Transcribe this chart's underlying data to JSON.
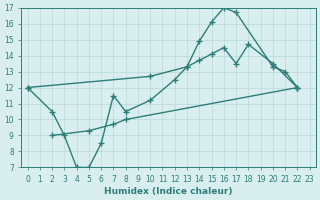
{
  "line1_x": [
    0,
    2,
    3,
    4,
    5,
    6,
    7,
    8,
    10,
    12,
    13,
    14,
    15,
    16,
    17,
    20,
    21,
    22
  ],
  "line1_y": [
    12,
    10.5,
    9,
    7,
    7,
    8.5,
    11.5,
    10.5,
    11.2,
    12.5,
    13.3,
    14.9,
    16.1,
    17,
    16.7,
    13.3,
    13.0,
    12.0
  ],
  "line2_x": [
    0,
    10,
    13,
    14,
    15,
    16,
    17,
    18,
    20,
    22
  ],
  "line2_y": [
    12,
    12.7,
    13.3,
    13.7,
    14.1,
    14.5,
    13.5,
    14.7,
    13.5,
    12.0
  ],
  "line3_x": [
    2,
    5,
    7,
    8,
    22
  ],
  "line3_y": [
    9.0,
    9.3,
    9.7,
    10.0,
    12.0
  ],
  "bg_color": "#d9efef",
  "line_color": "#2d7d78",
  "grid_color": "#b8d8d8",
  "xlabel": "Humidex (Indice chaleur)",
  "xlim": [
    -0.5,
    23.5
  ],
  "ylim": [
    7,
    17
  ],
  "xticks": [
    0,
    1,
    2,
    3,
    4,
    5,
    6,
    7,
    8,
    9,
    10,
    11,
    12,
    13,
    14,
    15,
    16,
    17,
    18,
    19,
    20,
    21,
    22,
    23
  ],
  "yticks": [
    7,
    8,
    9,
    10,
    11,
    12,
    13,
    14,
    15,
    16,
    17
  ],
  "marker": "+",
  "markersize": 5,
  "linewidth": 1.0,
  "xlabel_fontsize": 6.5,
  "tick_fontsize": 5.5
}
